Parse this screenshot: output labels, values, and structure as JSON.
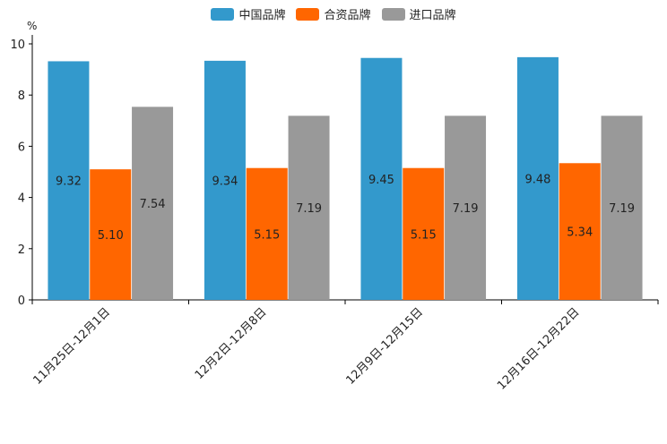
{
  "chart_data": {
    "type": "bar",
    "title": "",
    "ylabel": "%",
    "xlabel": "",
    "ylim": [
      0,
      10
    ],
    "yticks": [
      0,
      2,
      4,
      6,
      8,
      10
    ],
    "categories": [
      "11月25日-12月1日",
      "12月2日-12月8日",
      "12月9日-12月15日",
      "12月16日-12月22日"
    ],
    "series": [
      {
        "name": "中国品牌",
        "color": "#3399cc",
        "values": [
          9.32,
          9.34,
          9.45,
          9.48
        ],
        "labels": [
          "9.32",
          "9.34",
          "9.45",
          "9.48"
        ]
      },
      {
        "name": "合资品牌",
        "color": "#ff6600",
        "values": [
          5.1,
          5.15,
          5.15,
          5.34
        ],
        "labels": [
          "5.10",
          "5.15",
          "5.15",
          "5.34"
        ]
      },
      {
        "name": "进口品牌",
        "color": "#999999",
        "values": [
          7.54,
          7.19,
          7.19,
          7.19
        ],
        "labels": [
          "7.54",
          "7.19",
          "7.19",
          "7.19"
        ]
      }
    ],
    "legend_position": "top-center",
    "grid": false
  }
}
